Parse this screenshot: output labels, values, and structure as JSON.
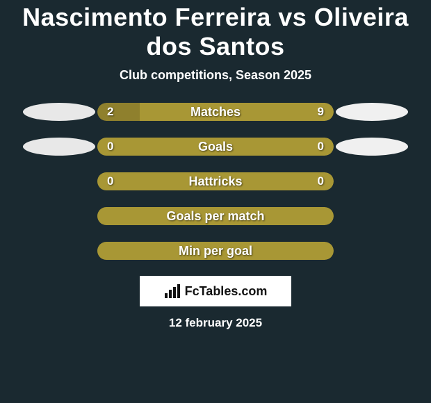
{
  "title": "Nascimento Ferreira vs Oliveira dos Santos",
  "subtitle": "Club competitions, Season 2025",
  "colors": {
    "background": "#1a2930",
    "avatar_left": "#e8e8e8",
    "avatar_right": "#f0f0f0",
    "bar_olive": "#a89735",
    "bar_olive_dark": "#8f802d",
    "text": "#ffffff"
  },
  "rows": [
    {
      "label": "Matches",
      "left_value": "2",
      "right_value": "9",
      "left_pct": 18,
      "right_pct": 82,
      "left_color": "#8f802d",
      "right_color": "#a89735",
      "show_left_avatar": true,
      "show_right_avatar": true
    },
    {
      "label": "Goals",
      "left_value": "0",
      "right_value": "0",
      "left_pct": 0,
      "right_pct": 100,
      "left_color": "#8f802d",
      "right_color": "#a89735",
      "show_left_avatar": true,
      "show_right_avatar": true
    },
    {
      "label": "Hattricks",
      "left_value": "0",
      "right_value": "0",
      "left_pct": 0,
      "right_pct": 100,
      "left_color": "#8f802d",
      "right_color": "#a89735",
      "show_left_avatar": false,
      "show_right_avatar": false
    },
    {
      "label": "Goals per match",
      "left_value": "",
      "right_value": "",
      "left_pct": 0,
      "right_pct": 100,
      "left_color": "#8f802d",
      "right_color": "#a89735",
      "show_left_avatar": false,
      "show_right_avatar": false
    },
    {
      "label": "Min per goal",
      "left_value": "",
      "right_value": "",
      "left_pct": 0,
      "right_pct": 100,
      "left_color": "#8f802d",
      "right_color": "#a89735",
      "show_left_avatar": false,
      "show_right_avatar": false
    }
  ],
  "logo_text": "FcTables.com",
  "date": "12 february 2025"
}
